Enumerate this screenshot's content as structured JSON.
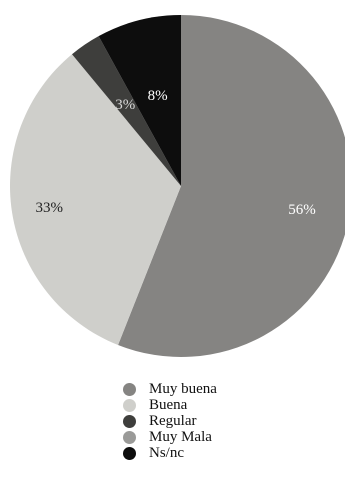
{
  "chart_data": {
    "type": "pie",
    "slices": [
      {
        "label": "Muy buena",
        "value": 56,
        "display": "56%",
        "color": "#858482"
      },
      {
        "label": "Buena",
        "value": 33,
        "display": "33%",
        "color": "#cfcfcb"
      },
      {
        "label": "Regular",
        "value": 3,
        "display": "3%",
        "color": "#3e3e3c"
      },
      {
        "label": "Muy Mala",
        "value": 0,
        "display": "",
        "color": "#9a9a98"
      },
      {
        "label": "Ns/nc",
        "value": 8,
        "display": "8%",
        "color": "#0d0d0d"
      }
    ],
    "legend_position": "bottom",
    "start": "top, clockwise"
  }
}
